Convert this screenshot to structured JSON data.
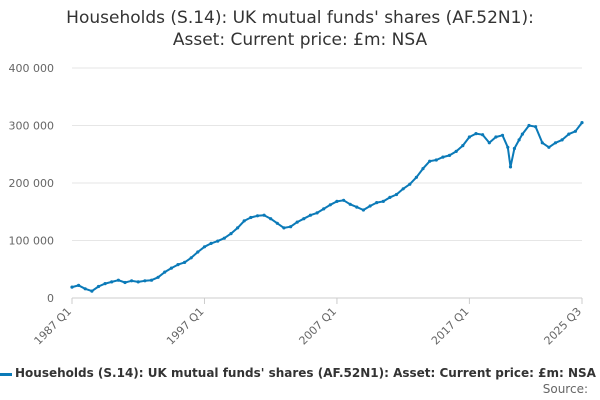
{
  "title_lines": [
    "Households (S.14): UK mutual funds' shares (AF.52N1):",
    "Asset: Current price: £m: NSA"
  ],
  "source_label": "Source:",
  "colors": {
    "series": "#0b7ab8",
    "grid": "#e6e6e6",
    "axis": "#cccccc"
  },
  "chart_data": {
    "type": "line",
    "title": "Households (S.14): UK mutual funds' shares (AF.52N1): Asset: Current price: £m: NSA",
    "xlabel": "",
    "ylabel": "",
    "grid": true,
    "legend": "bottom",
    "x_range": [
      "1987 Q1",
      "2025 Q3"
    ],
    "ylim": [
      0,
      400000
    ],
    "y_ticks": [
      0,
      100000,
      200000,
      300000,
      400000
    ],
    "y_tick_labels": [
      "0",
      "100 000",
      "200 000",
      "300 000",
      "400 000"
    ],
    "x_ticks": [
      {
        "x": 1987.0,
        "label": "1987 Q1"
      },
      {
        "x": 1997.0,
        "label": "1997 Q1"
      },
      {
        "x": 2007.0,
        "label": "2007 Q1"
      },
      {
        "x": 2017.0,
        "label": "2017 Q1"
      },
      {
        "x": 2025.5,
        "label": "2025 Q3"
      }
    ],
    "series": [
      {
        "name": "Households (S.14): UK mutual funds' shares (AF.52N1): Asset: Current price: £m: NSA",
        "points": [
          [
            1987.0,
            19000
          ],
          [
            1987.5,
            22000
          ],
          [
            1988.0,
            16000
          ],
          [
            1988.5,
            12000
          ],
          [
            1989.0,
            20000
          ],
          [
            1989.5,
            25000
          ],
          [
            1990.0,
            28000
          ],
          [
            1990.5,
            31000
          ],
          [
            1991.0,
            27000
          ],
          [
            1991.5,
            30000
          ],
          [
            1992.0,
            28000
          ],
          [
            1992.5,
            30000
          ],
          [
            1993.0,
            31000
          ],
          [
            1993.5,
            36000
          ],
          [
            1994.0,
            45000
          ],
          [
            1994.5,
            52000
          ],
          [
            1995.0,
            58000
          ],
          [
            1995.5,
            62000
          ],
          [
            1996.0,
            70000
          ],
          [
            1996.5,
            80000
          ],
          [
            1997.0,
            89000
          ],
          [
            1997.5,
            95000
          ],
          [
            1998.0,
            99000
          ],
          [
            1998.5,
            104000
          ],
          [
            1999.0,
            112000
          ],
          [
            1999.5,
            122000
          ],
          [
            2000.0,
            134000
          ],
          [
            2000.5,
            140000
          ],
          [
            2001.0,
            143000
          ],
          [
            2001.5,
            144000
          ],
          [
            2002.0,
            138000
          ],
          [
            2002.5,
            130000
          ],
          [
            2003.0,
            122000
          ],
          [
            2003.5,
            124000
          ],
          [
            2004.0,
            132000
          ],
          [
            2004.5,
            138000
          ],
          [
            2005.0,
            144000
          ],
          [
            2005.5,
            148000
          ],
          [
            2006.0,
            155000
          ],
          [
            2006.5,
            162000
          ],
          [
            2007.0,
            168000
          ],
          [
            2007.5,
            170000
          ],
          [
            2008.0,
            163000
          ],
          [
            2008.5,
            158000
          ],
          [
            2009.0,
            153000
          ],
          [
            2009.5,
            160000
          ],
          [
            2010.0,
            166000
          ],
          [
            2010.5,
            168000
          ],
          [
            2011.0,
            175000
          ],
          [
            2011.5,
            180000
          ],
          [
            2012.0,
            190000
          ],
          [
            2012.5,
            198000
          ],
          [
            2013.0,
            210000
          ],
          [
            2013.5,
            225000
          ],
          [
            2014.0,
            238000
          ],
          [
            2014.5,
            240000
          ],
          [
            2015.0,
            245000
          ],
          [
            2015.5,
            248000
          ],
          [
            2016.0,
            255000
          ],
          [
            2016.5,
            265000
          ],
          [
            2017.0,
            280000
          ],
          [
            2017.5,
            286000
          ],
          [
            2018.0,
            284000
          ],
          [
            2018.5,
            270000
          ],
          [
            2019.0,
            280000
          ],
          [
            2019.5,
            283000
          ],
          [
            2019.9,
            262000
          ],
          [
            2020.1,
            228000
          ],
          [
            2020.4,
            260000
          ],
          [
            2020.75,
            275000
          ],
          [
            2021.0,
            285000
          ],
          [
            2021.5,
            300000
          ],
          [
            2022.0,
            298000
          ],
          [
            2022.5,
            270000
          ],
          [
            2023.0,
            262000
          ],
          [
            2023.5,
            270000
          ],
          [
            2024.0,
            275000
          ],
          [
            2024.5,
            285000
          ],
          [
            2025.0,
            290000
          ],
          [
            2025.5,
            305000
          ]
        ]
      }
    ]
  }
}
